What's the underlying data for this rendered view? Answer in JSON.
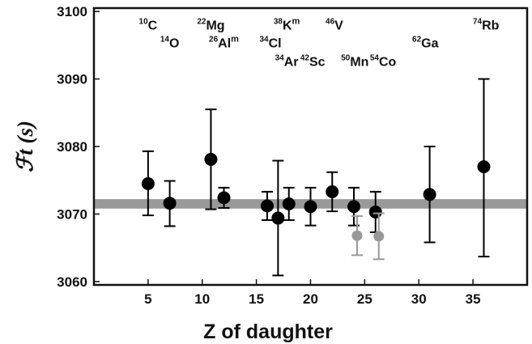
{
  "chart_data": {
    "type": "scatter",
    "title": "",
    "xlabel": "Z of daughter",
    "ylabel": "ℱt (s)",
    "xlim": [
      0,
      40
    ],
    "ylim": [
      3059.5,
      3100.5
    ],
    "xticks": [
      5,
      10,
      15,
      20,
      25,
      30,
      35
    ],
    "yticks": [
      3060,
      3070,
      3080,
      3090,
      3100
    ],
    "grid": false,
    "band": {
      "center": 3071.5,
      "half_width": 0.7,
      "color": "#999999"
    },
    "series": [
      {
        "color": "#000000",
        "points": [
          {
            "x": 5,
            "y": 3074.5,
            "err_lo": 4.7,
            "err_hi": 4.8
          },
          {
            "x": 7,
            "y": 3071.6,
            "err_lo": 3.4,
            "err_hi": 3.3
          },
          {
            "x": 10.8,
            "y": 3078.1,
            "err_lo": 7.4,
            "err_hi": 7.4
          },
          {
            "x": 12,
            "y": 3072.4,
            "err_lo": 1.5,
            "err_hi": 1.5
          },
          {
            "x": 16,
            "y": 3071.2,
            "err_lo": 2.1,
            "err_hi": 2.1
          },
          {
            "x": 17,
            "y": 3069.4,
            "err_lo": 8.5,
            "err_hi": 8.5
          },
          {
            "x": 18,
            "y": 3071.5,
            "err_lo": 2.4,
            "err_hi": 2.4
          },
          {
            "x": 20,
            "y": 3071.1,
            "err_lo": 2.8,
            "err_hi": 2.8
          },
          {
            "x": 22,
            "y": 3073.3,
            "err_lo": 2.9,
            "err_hi": 2.9
          },
          {
            "x": 24,
            "y": 3071.1,
            "err_lo": 2.8,
            "err_hi": 2.8
          },
          {
            "x": 26,
            "y": 3070.3,
            "err_lo": 3.0,
            "err_hi": 3.0
          },
          {
            "x": 31,
            "y": 3072.9,
            "err_lo": 7.1,
            "err_hi": 7.1
          },
          {
            "x": 36,
            "y": 3077.0,
            "err_lo": 13.3,
            "err_hi": 13.0
          }
        ]
      },
      {
        "color": "#999999",
        "points": [
          {
            "x": 24.3,
            "y": 3066.8,
            "err_lo": 2.9,
            "err_hi": 2.9
          },
          {
            "x": 26.3,
            "y": 3066.7,
            "err_lo": 3.4,
            "err_hi": 3.4
          }
        ]
      }
    ],
    "annotations": [
      {
        "mass": "10",
        "symbol": "C",
        "meta": "",
        "x": 5,
        "y": 3097.3
      },
      {
        "mass": "14",
        "symbol": "O",
        "meta": "",
        "x": 7,
        "y": 3094.7
      },
      {
        "mass": "22",
        "symbol": "Mg",
        "meta": "",
        "x": 10.8,
        "y": 3097.3
      },
      {
        "mass": "26",
        "symbol": "Al",
        "meta": "m",
        "x": 12,
        "y": 3094.7
      },
      {
        "mass": "34",
        "symbol": "Cl",
        "meta": "",
        "x": 16.3,
        "y": 3094.7
      },
      {
        "mass": "38",
        "symbol": "K",
        "meta": "m",
        "x": 17.8,
        "y": 3097.3
      },
      {
        "mass": "34",
        "symbol": "Ar",
        "meta": "",
        "x": 17.8,
        "y": 3091.9
      },
      {
        "mass": "42",
        "symbol": "Sc",
        "meta": "",
        "x": 20.2,
        "y": 3091.9
      },
      {
        "mass": "46",
        "symbol": "V",
        "meta": "",
        "x": 22.2,
        "y": 3097.3
      },
      {
        "mass": "50",
        "symbol": "Mn",
        "meta": "",
        "x": 24.1,
        "y": 3091.9
      },
      {
        "mass": "54",
        "symbol": "Co",
        "meta": "",
        "x": 26.7,
        "y": 3091.9
      },
      {
        "mass": "62",
        "symbol": "Ga",
        "meta": "",
        "x": 30.6,
        "y": 3094.7
      },
      {
        "mass": "74",
        "symbol": "Rb",
        "meta": "",
        "x": 36.2,
        "y": 3097.3
      }
    ]
  }
}
